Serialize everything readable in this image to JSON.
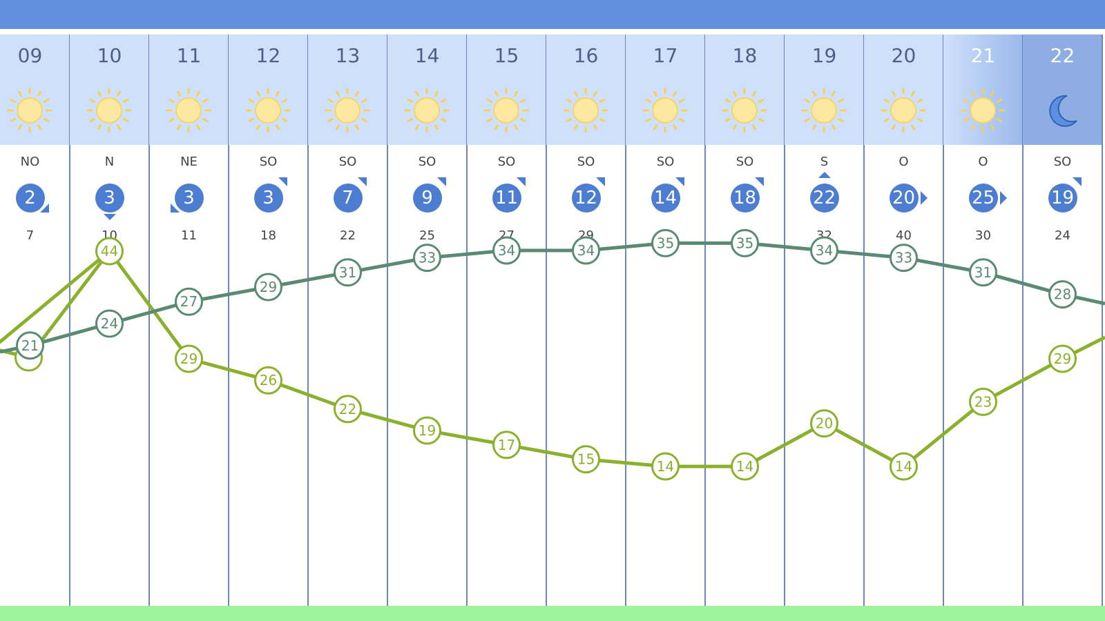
{
  "colors": {
    "topbar": "#5f8fdd",
    "header_day": "#cfe0fb",
    "header_dusk": "#8eaee3",
    "wind_badge": "#4d7dd1",
    "series1": "#5a8a73",
    "series2": "#8bb02e",
    "bottom_band": "#9ef29a"
  },
  "columns": [
    {
      "hour": "09",
      "icon": "sun-icon",
      "dir": "NO",
      "wind": "2",
      "gust": "7",
      "t1": 21,
      "t2": null,
      "arrow": "down-right"
    },
    {
      "hour": "10",
      "icon": "sun-icon",
      "dir": "N",
      "wind": "3",
      "gust": "10",
      "t1": 24,
      "t2": 44,
      "arrow": "down"
    },
    {
      "hour": "11",
      "icon": "sun-icon",
      "dir": "NE",
      "wind": "3",
      "gust": "11",
      "t1": 27,
      "t2": 29,
      "arrow": "down-left"
    },
    {
      "hour": "12",
      "icon": "sun-icon",
      "dir": "SO",
      "wind": "3",
      "gust": "18",
      "t1": 29,
      "t2": 26,
      "arrow": "up-right"
    },
    {
      "hour": "13",
      "icon": "sun-icon",
      "dir": "SO",
      "wind": "7",
      "gust": "22",
      "t1": 31,
      "t2": 22,
      "arrow": "up-right"
    },
    {
      "hour": "14",
      "icon": "sun-icon",
      "dir": "SO",
      "wind": "9",
      "gust": "25",
      "t1": 33,
      "t2": 19,
      "arrow": "up-right"
    },
    {
      "hour": "15",
      "icon": "sun-icon",
      "dir": "SO",
      "wind": "11",
      "gust": "27",
      "t1": 34,
      "t2": 17,
      "arrow": "up-right"
    },
    {
      "hour": "16",
      "icon": "sun-icon",
      "dir": "SO",
      "wind": "12",
      "gust": "29",
      "t1": 34,
      "t2": 15,
      "arrow": "up-right"
    },
    {
      "hour": "17",
      "icon": "sun-icon",
      "dir": "SO",
      "wind": "14",
      "gust": "",
      "t1": 35,
      "t2": 14,
      "arrow": "up-right"
    },
    {
      "hour": "18",
      "icon": "sun-icon",
      "dir": "SO",
      "wind": "18",
      "gust": "",
      "t1": 35,
      "t2": 14,
      "arrow": "up-right"
    },
    {
      "hour": "19",
      "icon": "sun-icon",
      "dir": "S",
      "wind": "22",
      "gust": "32",
      "t1": 34,
      "t2": 20,
      "arrow": "up"
    },
    {
      "hour": "20",
      "icon": "sun-icon",
      "dir": "O",
      "wind": "20",
      "gust": "40",
      "t1": 33,
      "t2": 14,
      "arrow": "right"
    },
    {
      "hour": "21",
      "icon": "sun-icon",
      "dir": "O",
      "wind": "25",
      "gust": "30",
      "t1": 31,
      "t2": 23,
      "arrow": "right"
    },
    {
      "hour": "22",
      "icon": "moon-icon",
      "dir": "SO",
      "wind": "19",
      "gust": "24",
      "t1": 28,
      "t2": 29,
      "arrow": "up-right"
    }
  ]
}
